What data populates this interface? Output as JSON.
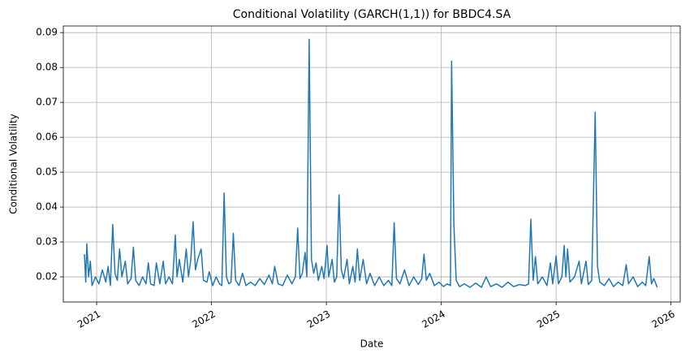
{
  "chart_data": {
    "type": "line",
    "title": "Conditional Volatility (GARCH(1,1)) for BBDC4.SA",
    "xlabel": "Date",
    "ylabel": "Conditional Volatility",
    "color": "#1f77b4",
    "grid": true,
    "xlim": [
      2020.71,
      2026.08
    ],
    "ylim": [
      0.0128,
      0.0919
    ],
    "xticks": [
      2021,
      2022,
      2023,
      2024,
      2025,
      2026
    ],
    "yticks": [
      0.02,
      0.03,
      0.04,
      0.05,
      0.06,
      0.07,
      0.08,
      0.09
    ],
    "x": [
      2020.894,
      2020.905,
      2020.915,
      2020.93,
      2020.945,
      2020.96,
      2020.99,
      2021.02,
      2021.05,
      2021.08,
      2021.1,
      2021.12,
      2021.14,
      2021.16,
      2021.18,
      2021.2,
      2021.22,
      2021.25,
      2021.27,
      2021.3,
      2021.32,
      2021.34,
      2021.37,
      2021.4,
      2021.43,
      2021.45,
      2021.47,
      2021.5,
      2021.52,
      2021.55,
      2021.58,
      2021.6,
      2021.63,
      2021.66,
      2021.685,
      2021.7,
      2021.72,
      2021.75,
      2021.78,
      2021.8,
      2021.82,
      2021.84,
      2021.86,
      2021.88,
      2021.91,
      2021.93,
      2021.96,
      2021.98,
      2022.01,
      2022.04,
      2022.07,
      2022.09,
      2022.11,
      2022.13,
      2022.15,
      2022.17,
      2022.19,
      2022.21,
      2022.24,
      2022.27,
      2022.3,
      2022.34,
      2022.38,
      2022.42,
      2022.46,
      2022.5,
      2022.53,
      2022.55,
      2022.58,
      2022.62,
      2022.66,
      2022.7,
      2022.73,
      2022.75,
      2022.77,
      2022.79,
      2022.815,
      2022.83,
      2022.85,
      2022.87,
      2022.89,
      2022.91,
      2022.93,
      2022.96,
      2022.98,
      2023.006,
      2023.02,
      2023.05,
      2023.07,
      2023.09,
      2023.11,
      2023.13,
      2023.15,
      2023.18,
      2023.2,
      2023.23,
      2023.25,
      2023.27,
      2023.29,
      2023.32,
      2023.35,
      2023.38,
      2023.42,
      2023.46,
      2023.5,
      2023.54,
      2023.57,
      2023.59,
      2023.61,
      2023.64,
      2023.68,
      2023.72,
      2023.76,
      2023.8,
      2023.83,
      2023.85,
      2023.87,
      2023.9,
      2023.94,
      2023.98,
      2024.02,
      2024.05,
      2024.08,
      2024.09,
      2024.11,
      2024.13,
      2024.16,
      2024.2,
      2024.25,
      2024.3,
      2024.35,
      2024.39,
      2024.43,
      2024.48,
      2024.53,
      2024.58,
      2024.63,
      2024.68,
      2024.73,
      2024.76,
      2024.78,
      2024.8,
      2024.82,
      2024.84,
      2024.88,
      2024.92,
      2024.95,
      2024.97,
      2025.0,
      2025.02,
      2025.05,
      2025.07,
      2025.085,
      2025.1,
      2025.12,
      2025.16,
      2025.2,
      2025.22,
      2025.26,
      2025.28,
      2025.31,
      2025.34,
      2025.36,
      2025.38,
      2025.42,
      2025.46,
      2025.5,
      2025.54,
      2025.58,
      2025.61,
      2025.63,
      2025.67,
      2025.71,
      2025.75,
      2025.78,
      2025.81,
      2025.83,
      2025.85,
      2025.88
    ],
    "values": [
      0.0265,
      0.0185,
      0.0295,
      0.02,
      0.0245,
      0.0175,
      0.02,
      0.018,
      0.022,
      0.0185,
      0.023,
      0.0175,
      0.035,
      0.021,
      0.019,
      0.028,
      0.02,
      0.0245,
      0.018,
      0.0195,
      0.0285,
      0.019,
      0.0175,
      0.02,
      0.018,
      0.024,
      0.018,
      0.0175,
      0.024,
      0.018,
      0.0245,
      0.018,
      0.02,
      0.018,
      0.032,
      0.02,
      0.025,
      0.0185,
      0.028,
      0.02,
      0.025,
      0.0358,
      0.022,
      0.025,
      0.028,
      0.019,
      0.0185,
      0.0215,
      0.0175,
      0.02,
      0.018,
      0.0175,
      0.044,
      0.02,
      0.018,
      0.0185,
      0.0325,
      0.019,
      0.0175,
      0.021,
      0.0175,
      0.0185,
      0.0175,
      0.0195,
      0.0178,
      0.0205,
      0.018,
      0.023,
      0.018,
      0.0175,
      0.0205,
      0.018,
      0.02,
      0.034,
      0.0195,
      0.021,
      0.027,
      0.02,
      0.0881,
      0.025,
      0.021,
      0.024,
      0.019,
      0.023,
      0.0195,
      0.029,
      0.02,
      0.025,
      0.0185,
      0.02,
      0.0435,
      0.022,
      0.0195,
      0.025,
      0.018,
      0.023,
      0.0185,
      0.028,
      0.019,
      0.025,
      0.018,
      0.021,
      0.0175,
      0.02,
      0.0175,
      0.019,
      0.0175,
      0.0355,
      0.0195,
      0.018,
      0.022,
      0.0175,
      0.02,
      0.0178,
      0.0195,
      0.0265,
      0.019,
      0.021,
      0.0175,
      0.0185,
      0.0172,
      0.018,
      0.0175,
      0.0818,
      0.035,
      0.019,
      0.0172,
      0.018,
      0.017,
      0.0182,
      0.017,
      0.02,
      0.0172,
      0.018,
      0.017,
      0.0185,
      0.0172,
      0.0178,
      0.0175,
      0.018,
      0.0365,
      0.019,
      0.0258,
      0.018,
      0.02,
      0.0175,
      0.024,
      0.018,
      0.026,
      0.018,
      0.02,
      0.029,
      0.02,
      0.028,
      0.0185,
      0.02,
      0.0245,
      0.018,
      0.0245,
      0.0178,
      0.019,
      0.0672,
      0.023,
      0.0185,
      0.0175,
      0.0195,
      0.0172,
      0.0185,
      0.0175,
      0.0235,
      0.018,
      0.02,
      0.0172,
      0.0185,
      0.0175,
      0.0258,
      0.018,
      0.0195,
      0.017
    ]
  }
}
